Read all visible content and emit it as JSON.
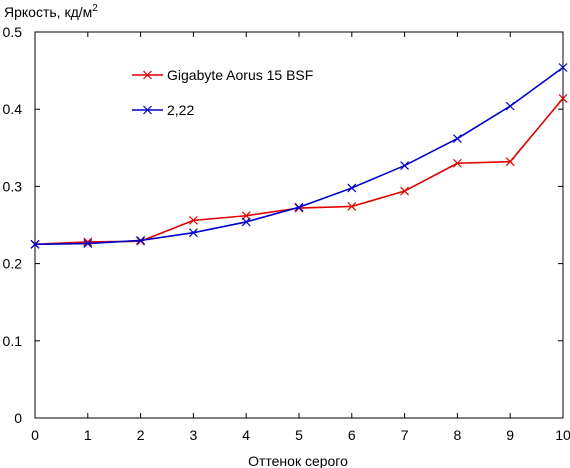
{
  "chart_data": {
    "type": "line",
    "title": "",
    "xlabel": "Оттенок серого",
    "ylabel": "Яркость, кд/м",
    "ylabel_superscript": "2",
    "xlim": [
      0,
      10
    ],
    "ylim": [
      0,
      0.5
    ],
    "x_ticks": [
      "0",
      "1",
      "2",
      "3",
      "4",
      "5",
      "6",
      "7",
      "8",
      "9",
      "10"
    ],
    "y_ticks": [
      {
        "value": 0,
        "label": "0"
      },
      {
        "value": 0.1,
        "label": "0.1"
      },
      {
        "value": 0.2,
        "label": "0.2"
      },
      {
        "value": 0.3,
        "label": "0.3"
      },
      {
        "value": 0.4,
        "label": "0.4"
      },
      {
        "value": 0.5,
        "label": "0.5"
      }
    ],
    "grid": false,
    "legend_position": "top-left",
    "x": [
      0,
      1,
      2,
      3,
      4,
      5,
      6,
      7,
      8,
      9,
      10
    ],
    "series": [
      {
        "name": "Gigabyte Aorus 15 BSF",
        "color": "#e00000",
        "marker": "x",
        "values": [
          0.225,
          0.228,
          0.229,
          0.256,
          0.262,
          0.272,
          0.274,
          0.294,
          0.33,
          0.332,
          0.414
        ]
      },
      {
        "name": "2,22",
        "color": "#0000cc",
        "marker": "x",
        "values": [
          0.225,
          0.226,
          0.23,
          0.24,
          0.254,
          0.273,
          0.298,
          0.327,
          0.362,
          0.404,
          0.454
        ]
      }
    ]
  }
}
